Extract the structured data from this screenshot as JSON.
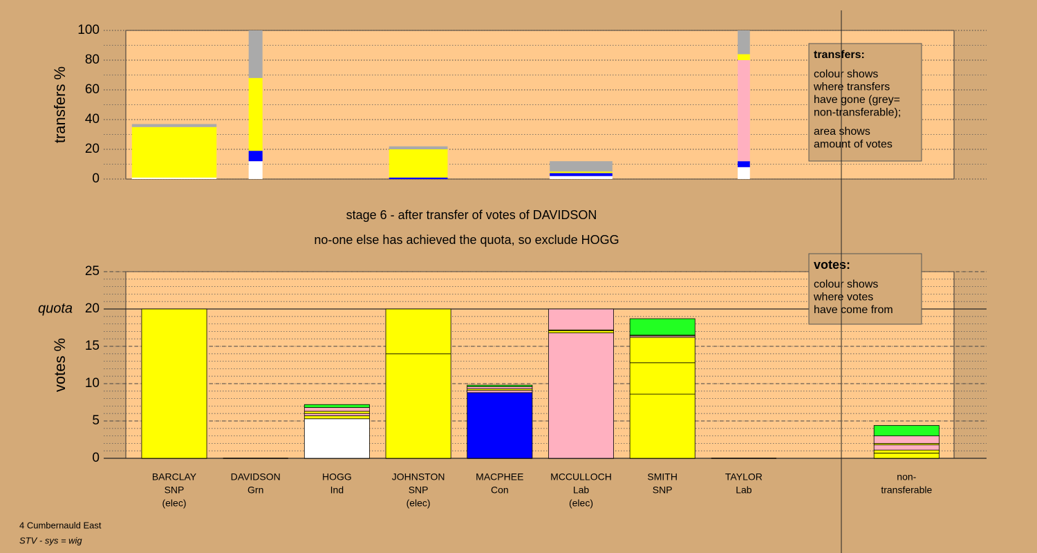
{
  "footer": {
    "area": "4 Cumbernauld East",
    "system": "STV - sys = wig"
  },
  "chart_data": [
    {
      "type": "stacked-bar",
      "ylabel": "transfers %",
      "ylim": [
        0,
        100
      ],
      "yticks": [
        0,
        20,
        40,
        60,
        80,
        100
      ],
      "minor_step": 10,
      "legend": {
        "title": "transfers:",
        "paragraphs": [
          [
            "colour shows",
            "where transfers",
            "have gone (grey=",
            "non-transferable);"
          ],
          [
            "area shows",
            "amount of votes"
          ]
        ]
      },
      "columns": [
        {
          "width": 1.04,
          "segments": [
            {
              "color": "#ffffff",
              "value": 1
            },
            {
              "color": "#ffff00",
              "value": 34
            },
            {
              "color": "#aaaaaa",
              "value": 2
            }
          ]
        },
        {
          "width": 0.17,
          "segments": [
            {
              "color": "#ffffff",
              "value": 12
            },
            {
              "color": "#0000ff",
              "value": 7
            },
            {
              "color": "#ffff00",
              "value": 49
            },
            {
              "color": "#aaaaaa",
              "value": 32
            }
          ]
        },
        null,
        {
          "width": 0.72,
          "segments": [
            {
              "color": "#0000ff",
              "value": 1
            },
            {
              "color": "#ffff00",
              "value": 19
            },
            {
              "color": "#aaaaaa",
              "value": 2
            }
          ]
        },
        null,
        {
          "width": 0.77,
          "segments": [
            {
              "color": "#ffffff",
              "value": 2
            },
            {
              "color": "#0000ff",
              "value": 2
            },
            {
              "color": "#ffff00",
              "value": 1
            },
            {
              "color": "#aaaaaa",
              "value": 7
            }
          ]
        },
        null,
        {
          "width": 0.15,
          "segments": [
            {
              "color": "#ffffff",
              "value": 8
            },
            {
              "color": "#0000ff",
              "value": 4
            },
            {
              "color": "#ffb0c0",
              "value": 68
            },
            {
              "color": "#ffff00",
              "value": 4
            },
            {
              "color": "#aaaaaa",
              "value": 16
            }
          ]
        },
        null,
        null
      ]
    },
    {
      "type": "stacked-bar",
      "title": "stage 6 - after transfer of votes of DAVIDSON",
      "subtitle": "no-one else has achieved the quota, so exclude HOGG",
      "ylabel": "votes %",
      "ylim": [
        0,
        25
      ],
      "yticks": [
        0,
        5,
        10,
        15,
        20,
        25
      ],
      "minor_step": 1,
      "quota": {
        "value": 20,
        "label": "quota"
      },
      "legend": {
        "title": "votes:",
        "paragraphs": [
          [
            "colour shows",
            "where votes",
            "have come from"
          ]
        ]
      },
      "categories": [
        [
          "BARCLAY",
          "SNP",
          "(elec)"
        ],
        [
          "DAVIDSON",
          "Grn"
        ],
        [
          "HOGG",
          "Ind"
        ],
        [
          "JOHNSTON",
          "SNP",
          "(elec)"
        ],
        [
          "MACPHEE",
          "Con"
        ],
        [
          "MCCULLOCH",
          "Lab",
          "(elec)"
        ],
        [
          "SMITH",
          "SNP"
        ],
        [
          "TAYLOR",
          "Lab"
        ],
        null,
        [
          "non-",
          "transferable"
        ]
      ],
      "columns": [
        {
          "segments": [
            {
              "color": "#ffff00",
              "value": 20
            }
          ]
        },
        {
          "segments": []
        },
        {
          "segments": [
            {
              "color": "#ffffff",
              "value": 5.3
            },
            {
              "color": "#ffff00",
              "value": 0.4
            },
            {
              "color": "#ffb0c0",
              "value": 0.3
            },
            {
              "color": "#ffff00",
              "value": 0.3
            },
            {
              "color": "#ffb0c0",
              "value": 0.5
            },
            {
              "color": "#22ff22",
              "value": 0.4
            }
          ]
        },
        {
          "segments": [
            {
              "color": "#ffff00",
              "value": 14
            },
            {
              "color": "#ffff00",
              "value": 6
            }
          ]
        },
        {
          "segments": [
            {
              "color": "#0000ff",
              "value": 8.8
            },
            {
              "color": "#ffb0c0",
              "value": 0.3
            },
            {
              "color": "#ffff00",
              "value": 0.2
            },
            {
              "color": "#ffb0c0",
              "value": 0.3
            },
            {
              "color": "#22ff22",
              "value": 0.2
            }
          ]
        },
        {
          "segments": [
            {
              "color": "#ffb0c0",
              "value": 16.8
            },
            {
              "color": "#ffff00",
              "value": 0.3
            },
            {
              "color": "#ffff00",
              "value": 0.1
            },
            {
              "color": "#ffb0c0",
              "value": 2.8
            }
          ]
        },
        {
          "segments": [
            {
              "color": "#ffff00",
              "value": 8.6
            },
            {
              "color": "#ffff00",
              "value": 4.2
            },
            {
              "color": "#ffff00",
              "value": 3.4
            },
            {
              "color": "#ffb0c0",
              "value": 0.2
            },
            {
              "color": "#ffff00",
              "value": 0.1
            },
            {
              "color": "#22ff22",
              "value": 2.2
            }
          ]
        },
        {
          "segments": []
        },
        null,
        {
          "segments": [
            {
              "color": "#ffff00",
              "value": 0.7
            },
            {
              "color": "#ffff00",
              "value": 0.4
            },
            {
              "color": "#ffb0c0",
              "value": 0.7
            },
            {
              "color": "#ffff00",
              "value": 0.2
            },
            {
              "color": "#ffb0c0",
              "value": 1.0
            },
            {
              "color": "#22ff22",
              "value": 1.4
            }
          ]
        }
      ]
    }
  ]
}
